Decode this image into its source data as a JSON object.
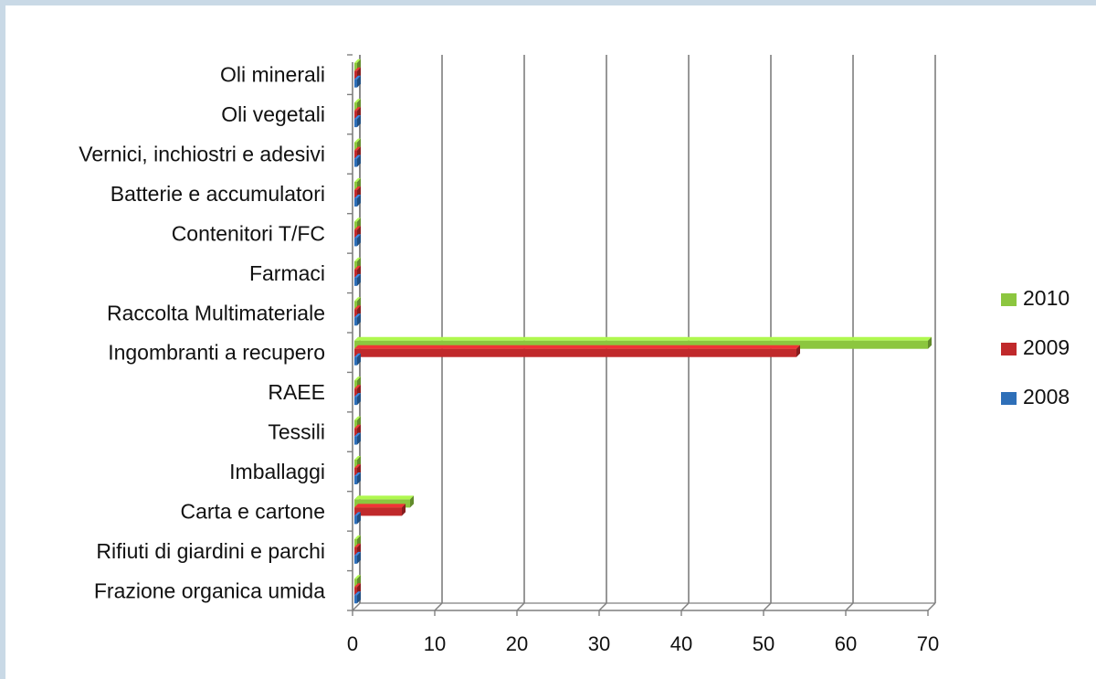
{
  "chart_data": {
    "type": "bar",
    "orientation": "horizontal",
    "style": "3d",
    "title": "",
    "xlabel": "",
    "ylabel": "",
    "xlim": [
      0,
      70
    ],
    "ticks": [
      "0",
      "10",
      "20",
      "30",
      "40",
      "50",
      "60",
      "70"
    ],
    "tick_values": [
      0,
      10,
      20,
      30,
      40,
      50,
      60,
      70
    ],
    "grid": true,
    "legend_position": "right",
    "categories": [
      "Oli minerali",
      "Oli vegetali",
      "Vernici, inchiostri e adesivi",
      "Batterie e accumulatori",
      "Contenitori T/FC",
      "Farmaci",
      "Raccolta Multimateriale",
      "Ingombranti a recupero",
      "RAEE",
      "Tessili",
      "Imballaggi",
      "Carta e cartone",
      "Rifiuti di giardini e parchi",
      "Frazione organica umida"
    ],
    "series": [
      {
        "name": "2010",
        "color": "#8cc63f",
        "values": [
          0,
          0,
          0,
          0,
          0,
          0,
          0,
          70,
          0,
          0,
          0,
          7,
          0,
          0
        ]
      },
      {
        "name": "2009",
        "color": "#c0292b",
        "values": [
          0,
          0,
          0,
          0,
          0,
          0,
          0,
          54,
          0,
          0,
          0,
          6,
          0,
          0
        ]
      },
      {
        "name": "2008",
        "color": "#2e6fb8",
        "values": [
          0,
          0,
          0,
          0,
          0,
          0,
          0,
          0,
          0,
          0,
          0,
          0,
          0,
          0
        ]
      }
    ]
  }
}
